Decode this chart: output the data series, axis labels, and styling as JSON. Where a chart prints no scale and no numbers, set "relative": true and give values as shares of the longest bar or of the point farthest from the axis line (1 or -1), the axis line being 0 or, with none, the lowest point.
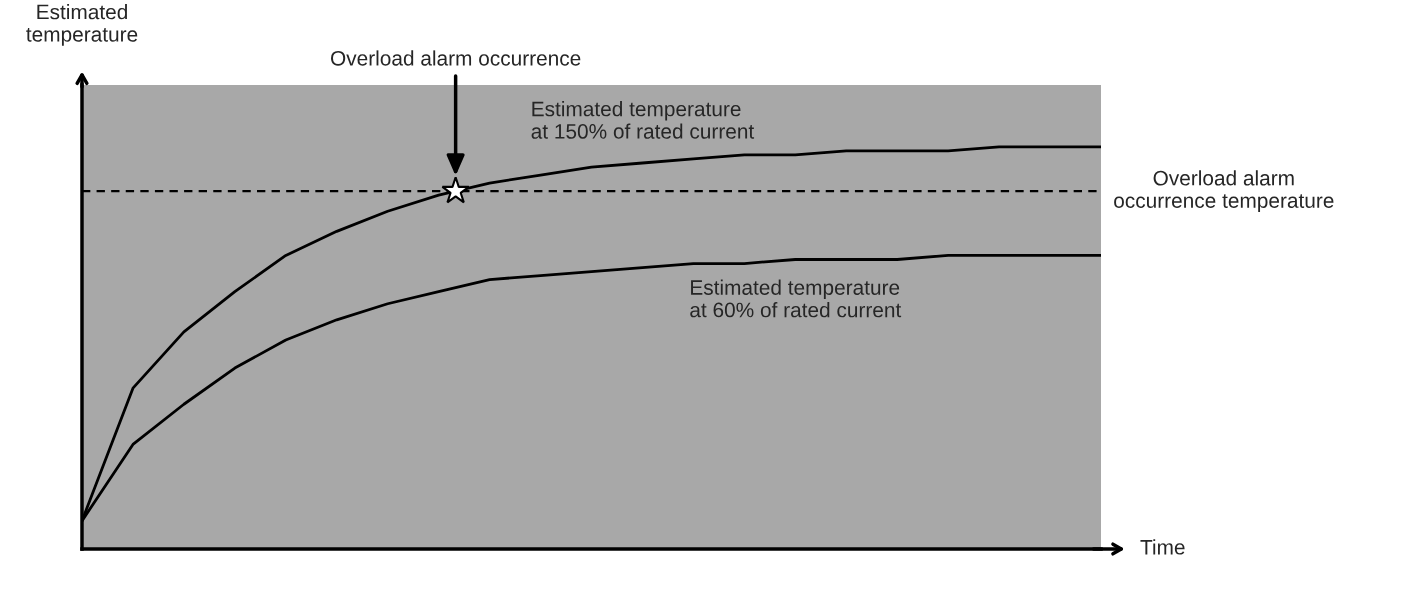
{
  "chart_data": {
    "type": "line",
    "relative": true,
    "xlabel": "Time",
    "ylabel": "Estimated\ntemperature",
    "categories": [
      null,
      null,
      null,
      null,
      null,
      null,
      null,
      null,
      null,
      null,
      null,
      null,
      null,
      null,
      null,
      null,
      null,
      null,
      null,
      null,
      null
    ],
    "series": [
      {
        "name": "Estimated temperature\nat 150% of rated current",
        "color": "#000000",
        "values": [
          0.07,
          0.4,
          0.54,
          0.64,
          0.73,
          0.79,
          0.84,
          0.88,
          0.91,
          0.93,
          0.95,
          0.96,
          0.97,
          0.98,
          0.98,
          0.99,
          0.99,
          0.99,
          1,
          1,
          1
        ]
      },
      {
        "name": "Estimated temperature\nat 60% of rated current",
        "color": "#000000",
        "values": [
          0.07,
          0.26,
          0.36,
          0.45,
          0.52,
          0.57,
          0.61,
          0.64,
          0.67,
          0.68,
          0.69,
          0.7,
          0.71,
          0.71,
          0.72,
          0.72,
          0.72,
          0.73,
          0.73,
          0.73,
          0.73
        ]
      }
    ],
    "ref_lines": [
      {
        "axis": "y",
        "value": 0.89,
        "label": "Overload alarm\noccurrence temperature",
        "color": "#000000",
        "line_style": "dashed"
      }
    ],
    "annotations": [
      "Overload alarm occurrence"
    ],
    "grid": false,
    "legend": false
  }
}
